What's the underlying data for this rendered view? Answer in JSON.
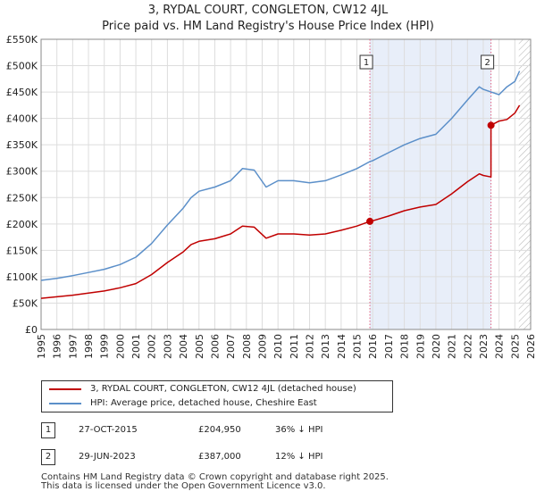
{
  "title_line1": "3, RYDAL COURT, CONGLETON, CW12 4JL",
  "title_line2": "Price paid vs. HM Land Registry's House Price Index (HPI)",
  "chart_data": {
    "type": "line",
    "xlim": [
      1995,
      2026
    ],
    "ylim": [
      0,
      550000
    ],
    "x_ticks": [
      1995,
      1996,
      1997,
      1998,
      1999,
      2000,
      2001,
      2002,
      2003,
      2004,
      2005,
      2006,
      2007,
      2008,
      2009,
      2010,
      2011,
      2012,
      2013,
      2014,
      2015,
      2016,
      2017,
      2018,
      2019,
      2020,
      2021,
      2022,
      2023,
      2024,
      2025,
      2026
    ],
    "x_tick_labels": [
      "1995",
      "1996",
      "1997",
      "1998",
      "1999",
      "2000",
      "2001",
      "2002",
      "2003",
      "2004",
      "2005",
      "2006",
      "2007",
      "2008",
      "2009",
      "2010",
      "2011",
      "2012",
      "2013",
      "2014",
      "2015",
      "2016",
      "2017",
      "2018",
      "2019",
      "2020",
      "2021",
      "2022",
      "2023",
      "2024",
      "2025",
      "2026"
    ],
    "y_ticks": [
      0,
      50000,
      100000,
      150000,
      200000,
      250000,
      300000,
      350000,
      400000,
      450000,
      500000,
      550000
    ],
    "y_tick_labels": [
      "£0",
      "£50K",
      "£100K",
      "£150K",
      "£200K",
      "£250K",
      "£300K",
      "£350K",
      "£400K",
      "£450K",
      "£500K",
      "£550K"
    ],
    "series": [
      {
        "name": "HPI: Average price, detached house, Cheshire East",
        "color": "#5b8fc9",
        "x": [
          1995,
          1996,
          1997,
          1998,
          1999,
          2000,
          2001,
          2002,
          2003,
          2004,
          2004.5,
          2005,
          2006,
          2007,
          2007.75,
          2008.5,
          2009.25,
          2010,
          2011,
          2012,
          2013,
          2014,
          2015,
          2015.8,
          2016,
          2017,
          2018,
          2019,
          2020,
          2021,
          2022,
          2022.75,
          2023,
          2023.5,
          2024,
          2024.5,
          2025,
          2025.3
        ],
        "y": [
          93000,
          97000,
          102000,
          108000,
          114000,
          123000,
          137000,
          163000,
          198000,
          230000,
          250000,
          262000,
          270000,
          282000,
          305000,
          302000,
          270000,
          282000,
          282000,
          278000,
          282000,
          293000,
          305000,
          318000,
          320000,
          335000,
          350000,
          362000,
          370000,
          400000,
          435000,
          460000,
          455000,
          450000,
          445000,
          460000,
          470000,
          490000
        ]
      },
      {
        "name": "3, RYDAL COURT, CONGLETON, CW12 4JL (detached house)",
        "color": "#c00000",
        "x": [
          1995,
          1996,
          1997,
          1998,
          1999,
          2000,
          2001,
          2002,
          2003,
          2004,
          2004.5,
          2005,
          2006,
          2007,
          2007.75,
          2008.5,
          2009.25,
          2010,
          2011,
          2012,
          2013,
          2014,
          2015,
          2015.82,
          2016,
          2017,
          2018,
          2019,
          2020,
          2021,
          2022,
          2022.75,
          2023,
          2023.49,
          2023.49,
          2024,
          2024.5,
          2025,
          2025.3
        ],
        "y": [
          59000,
          62000,
          65000,
          69000,
          73000,
          79000,
          87000,
          104000,
          127000,
          147000,
          161000,
          167000,
          172000,
          181000,
          196000,
          194000,
          173000,
          181000,
          181000,
          179000,
          181000,
          188000,
          196000,
          204950,
          206000,
          215000,
          225000,
          232000,
          237000,
          257000,
          280000,
          295000,
          292000,
          289000,
          387000,
          395000,
          398000,
          410000,
          425000
        ]
      }
    ],
    "sales": [
      {
        "label": "1",
        "date": "27-OCT-2015",
        "x": 2015.82,
        "price": "£204,950",
        "price_value": 204950,
        "hpi_note": "36% ↓ HPI"
      },
      {
        "label": "2",
        "date": "29-JUN-2023",
        "x": 2023.49,
        "price": "£387,000",
        "price_value": 387000,
        "hpi_note": "12% ↓ HPI"
      }
    ],
    "forecast_from": 2025.25,
    "grid": true
  },
  "legend": {
    "property_label": "3, RYDAL COURT, CONGLETON, CW12 4JL (detached house)",
    "hpi_label": "HPI: Average price, detached house, Cheshire East",
    "property_color": "#c00000",
    "hpi_color": "#5b8fc9"
  },
  "footer": {
    "line1": "Contains HM Land Registry data © Crown copyright and database right 2025.",
    "line2": "This data is licensed under the Open Government Licence v3.0."
  }
}
